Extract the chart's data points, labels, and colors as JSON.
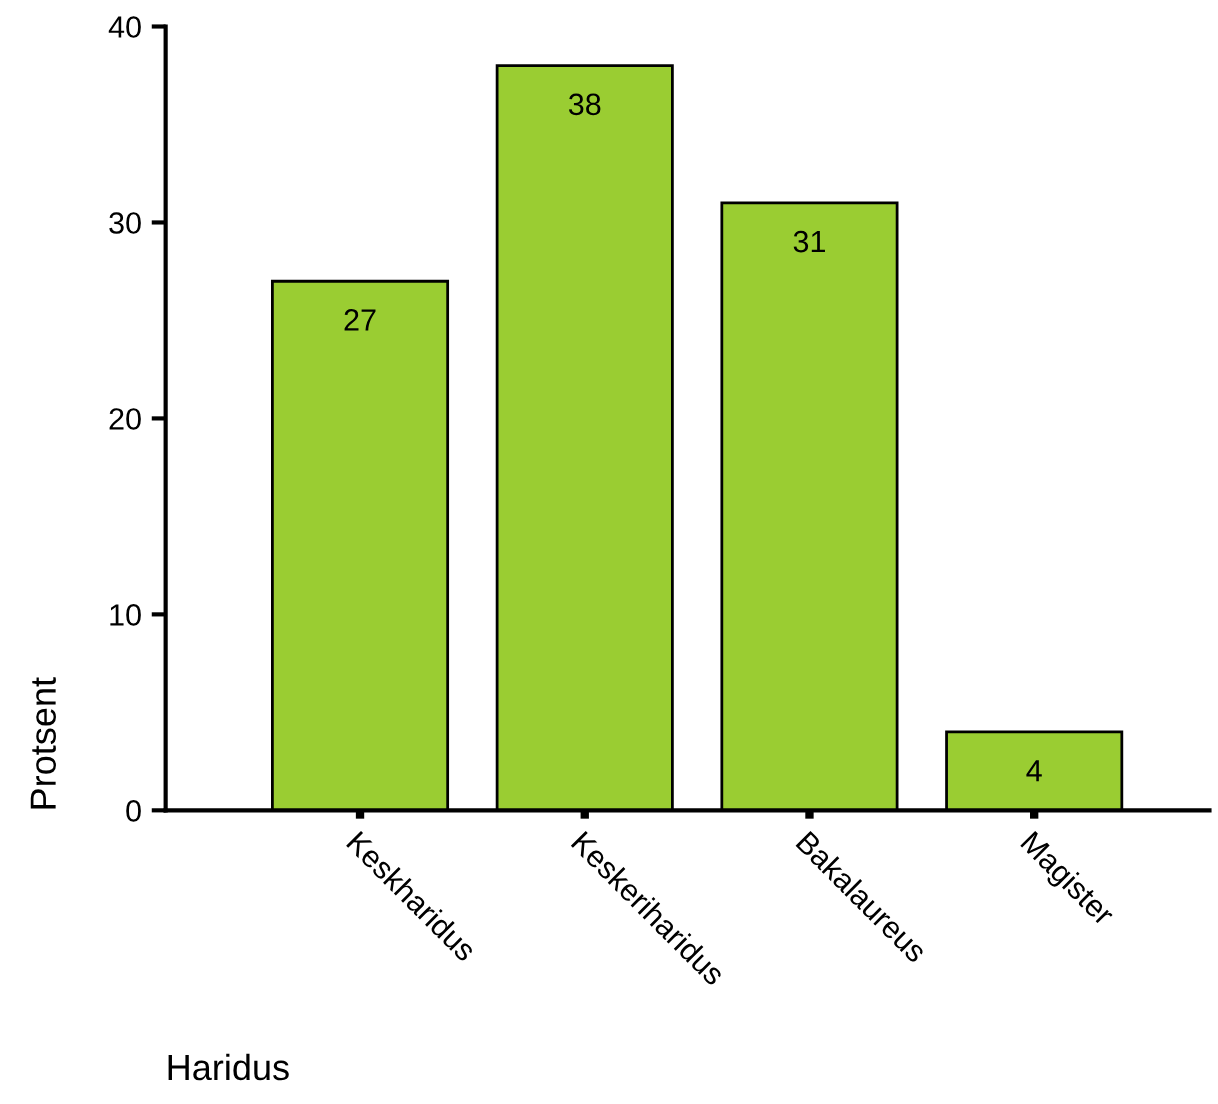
{
  "chart_data": {
    "type": "bar",
    "categories": [
      "Keskharidus",
      "Keskeriharidus",
      "Bakalaureus",
      "Magister"
    ],
    "values": [
      27,
      38,
      31,
      4
    ],
    "color": "#9acd32",
    "xlabel": "Haridus",
    "ylabel": "Protsent",
    "ylim": [
      0,
      40
    ],
    "yticks": [
      0,
      10,
      20,
      30,
      40
    ],
    "data_labels": true,
    "grid": false,
    "legend": false
  }
}
